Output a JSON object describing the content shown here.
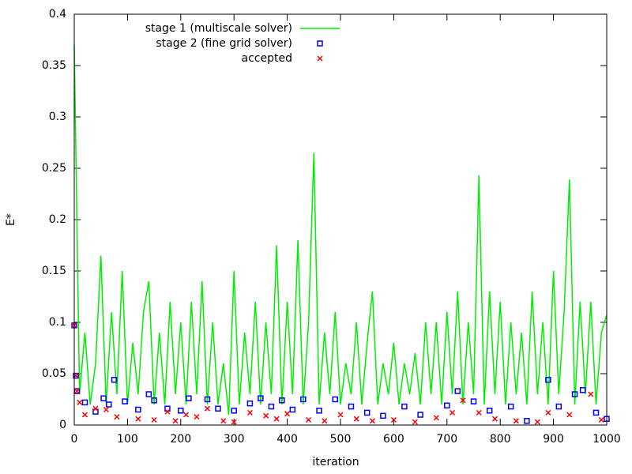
{
  "chart_data": {
    "type": "scatter",
    "xlabel": "iteration",
    "ylabel": "E*",
    "xlim": [
      0,
      1000
    ],
    "ylim": [
      0,
      0.4
    ],
    "xticks": [
      0,
      100,
      200,
      300,
      400,
      500,
      600,
      700,
      800,
      900,
      1000
    ],
    "yticks": [
      0,
      0.05,
      0.1,
      0.15,
      0.2,
      0.25,
      0.3,
      0.35,
      0.4
    ],
    "legend": "top-left",
    "series": [
      {
        "name": "stage 1 (multiscale solver)",
        "style": "line",
        "color": "#00ee00",
        "x": [
          0,
          10,
          20,
          30,
          40,
          50,
          60,
          70,
          80,
          90,
          100,
          110,
          120,
          130,
          140,
          150,
          160,
          170,
          180,
          190,
          200,
          210,
          220,
          230,
          240,
          250,
          260,
          270,
          280,
          290,
          300,
          310,
          320,
          330,
          340,
          350,
          360,
          370,
          380,
          390,
          400,
          410,
          420,
          430,
          440,
          450,
          460,
          470,
          480,
          490,
          500,
          510,
          520,
          530,
          540,
          550,
          560,
          570,
          580,
          590,
          600,
          610,
          620,
          630,
          640,
          650,
          660,
          670,
          680,
          690,
          700,
          710,
          720,
          730,
          740,
          750,
          760,
          770,
          780,
          790,
          800,
          810,
          820,
          830,
          840,
          850,
          860,
          870,
          880,
          890,
          900,
          910,
          920,
          930,
          940,
          950,
          960,
          970,
          980,
          990,
          1000
        ],
        "values": [
          0.37,
          0.03,
          0.09,
          0.02,
          0.06,
          0.165,
          0.02,
          0.11,
          0.03,
          0.15,
          0.02,
          0.08,
          0.03,
          0.11,
          0.14,
          0.02,
          0.09,
          0.02,
          0.12,
          0.03,
          0.1,
          0.02,
          0.12,
          0.03,
          0.14,
          0.02,
          0.1,
          0.02,
          0.06,
          0.01,
          0.15,
          0.02,
          0.09,
          0.03,
          0.12,
          0.02,
          0.1,
          0.03,
          0.175,
          0.02,
          0.12,
          0.03,
          0.18,
          0.02,
          0.1,
          0.265,
          0.02,
          0.09,
          0.03,
          0.11,
          0.02,
          0.06,
          0.03,
          0.1,
          0.02,
          0.08,
          0.13,
          0.02,
          0.06,
          0.03,
          0.08,
          0.02,
          0.06,
          0.03,
          0.07,
          0.02,
          0.1,
          0.03,
          0.1,
          0.02,
          0.11,
          0.03,
          0.13,
          0.02,
          0.1,
          0.03,
          0.243,
          0.02,
          0.13,
          0.03,
          0.12,
          0.02,
          0.1,
          0.03,
          0.09,
          0.02,
          0.13,
          0.03,
          0.1,
          0.02,
          0.15,
          0.03,
          0.11,
          0.239,
          0.02,
          0.12,
          0.03,
          0.12,
          0.02,
          0.09,
          0.107
        ]
      },
      {
        "name": "stage 2 (fine grid solver)",
        "style": "square",
        "color": "#0000ff",
        "x": [
          0,
          3,
          5,
          20,
          40,
          55,
          65,
          75,
          95,
          120,
          140,
          150,
          175,
          200,
          215,
          250,
          270,
          300,
          330,
          350,
          370,
          390,
          410,
          430,
          460,
          490,
          520,
          550,
          580,
          620,
          650,
          700,
          720,
          750,
          780,
          820,
          850,
          890,
          910,
          940,
          955,
          980,
          1000
        ],
        "values": [
          0.097,
          0.048,
          0.033,
          0.022,
          0.013,
          0.026,
          0.02,
          0.044,
          0.023,
          0.015,
          0.03,
          0.024,
          0.016,
          0.014,
          0.026,
          0.025,
          0.016,
          0.014,
          0.021,
          0.026,
          0.018,
          0.024,
          0.015,
          0.025,
          0.014,
          0.025,
          0.018,
          0.012,
          0.009,
          0.018,
          0.01,
          0.019,
          0.033,
          0.023,
          0.014,
          0.018,
          0.004,
          0.044,
          0.018,
          0.03,
          0.034,
          0.012,
          0.006
        ]
      },
      {
        "name": "accepted",
        "style": "cross",
        "color": "#ff0000",
        "x": [
          0,
          3,
          5,
          10,
          20,
          40,
          60,
          80,
          120,
          150,
          175,
          190,
          210,
          230,
          250,
          280,
          300,
          330,
          360,
          380,
          400,
          440,
          470,
          500,
          530,
          560,
          600,
          640,
          680,
          710,
          730,
          760,
          790,
          830,
          870,
          890,
          930,
          970,
          990
        ],
        "values": [
          0.097,
          0.048,
          0.033,
          0.022,
          0.01,
          0.016,
          0.015,
          0.008,
          0.006,
          0.005,
          0.013,
          0.004,
          0.01,
          0.008,
          0.016,
          0.004,
          0.003,
          0.012,
          0.009,
          0.006,
          0.011,
          0.005,
          0.004,
          0.01,
          0.006,
          0.004,
          0.005,
          0.003,
          0.007,
          0.012,
          0.024,
          0.012,
          0.006,
          0.004,
          0.003,
          0.012,
          0.01,
          0.03,
          0.005
        ]
      }
    ]
  }
}
